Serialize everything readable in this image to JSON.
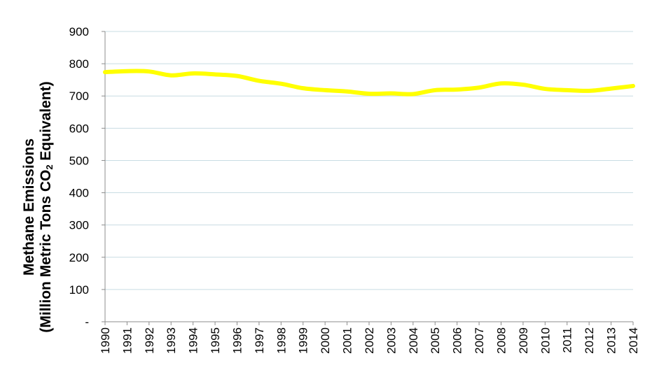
{
  "chart_data": {
    "type": "line",
    "ylabel_line1": "Methane Emissions",
    "ylabel_line2_pre": "(Million Metric Tons CO",
    "ylabel_line2_sub": "2",
    "ylabel_line2_post": " Equivalent)",
    "xlabel": "",
    "title": "",
    "categories": [
      "1990",
      "1991",
      "1992",
      "1993",
      "1994",
      "1995",
      "1996",
      "1997",
      "1998",
      "1999",
      "2000",
      "2001",
      "2002",
      "2003",
      "2004",
      "2005",
      "2006",
      "2007",
      "2008",
      "2009",
      "2010",
      "2011",
      "2012",
      "2013",
      "2014"
    ],
    "series": [
      {
        "values": [
          774,
          777,
          776,
          764,
          770,
          767,
          762,
          747,
          738,
          724,
          718,
          714,
          707,
          708,
          706,
          718,
          720,
          726,
          739,
          735,
          722,
          718,
          716,
          723,
          731
        ],
        "color": "#ffff00"
      }
    ],
    "ylim": [
      0,
      900
    ],
    "yticks": [
      0,
      100,
      200,
      300,
      400,
      500,
      600,
      700,
      800,
      900
    ],
    "ytick_labels": [
      "-",
      "100",
      "200",
      "300",
      "400",
      "500",
      "600",
      "700",
      "800",
      "900"
    ],
    "grid": true,
    "gridline_color": "#c8dce3",
    "axis_color": "#8c8c8c",
    "legend": "none"
  }
}
